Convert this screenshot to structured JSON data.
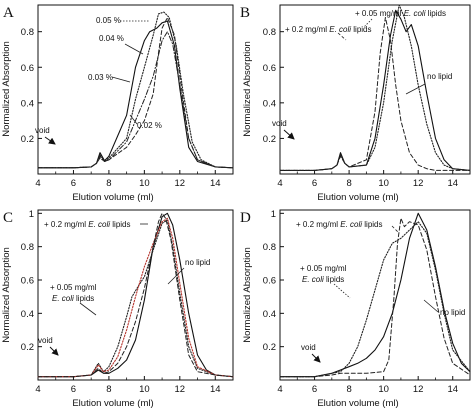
{
  "figure": {
    "colors": {
      "solid": "#111111",
      "dotted": "#222222",
      "dashed": "#222222",
      "red": "#b5352e",
      "grey": "#777777"
    }
  },
  "chart_data": [
    {
      "type": "line",
      "panel": "A",
      "xlabel": "Elution volume (ml)",
      "ylabel": "Normalized Absorption",
      "xlim": [
        4,
        15
      ],
      "ylim": [
        0,
        0.95
      ],
      "xticks": [
        4,
        6,
        8,
        10,
        12,
        14
      ],
      "yticks": [
        0.2,
        0.4,
        0.6,
        0.8
      ],
      "series": [
        {
          "style": "solid",
          "x": [
            4,
            6,
            7,
            7.3,
            7.5,
            7.75,
            8,
            9,
            9.5,
            10,
            10.3,
            10.7,
            11,
            11.3,
            11.7,
            12,
            12.5,
            13,
            14,
            15
          ],
          "y": [
            0.035,
            0.035,
            0.04,
            0.06,
            0.12,
            0.075,
            0.1,
            0.33,
            0.6,
            0.75,
            0.8,
            0.82,
            0.85,
            0.86,
            0.72,
            0.48,
            0.15,
            0.07,
            0.04,
            0.035
          ]
        },
        {
          "style": "dotted",
          "x": [
            4,
            6,
            7,
            7.3,
            7.5,
            7.75,
            8,
            9,
            9.5,
            10,
            10.5,
            10.8,
            11.1,
            11.4,
            11.8,
            12.2,
            12.7,
            13.2,
            14,
            15
          ],
          "y": [
            0.035,
            0.035,
            0.04,
            0.06,
            0.11,
            0.07,
            0.09,
            0.2,
            0.42,
            0.6,
            0.78,
            0.9,
            0.91,
            0.88,
            0.72,
            0.45,
            0.18,
            0.08,
            0.04,
            0.035
          ]
        },
        {
          "style": "dashed",
          "x": [
            4,
            6,
            7,
            7.3,
            7.5,
            7.75,
            8,
            9,
            9.5,
            10,
            10.5,
            10.8,
            11,
            11.3,
            11.7,
            12,
            12.5,
            13,
            14,
            15
          ],
          "y": [
            0.035,
            0.035,
            0.04,
            0.06,
            0.1,
            0.07,
            0.08,
            0.15,
            0.22,
            0.3,
            0.45,
            0.68,
            0.82,
            0.88,
            0.78,
            0.55,
            0.2,
            0.08,
            0.04,
            0.035
          ]
        },
        {
          "style": "dashdot",
          "x": [
            4,
            6,
            7,
            7.3,
            7.5,
            7.75,
            8,
            9,
            9.5,
            10,
            10.5,
            11,
            11.3,
            11.6,
            12,
            12.5,
            13,
            14,
            15
          ],
          "y": [
            0.035,
            0.035,
            0.04,
            0.06,
            0.09,
            0.07,
            0.08,
            0.18,
            0.3,
            0.42,
            0.55,
            0.75,
            0.8,
            0.73,
            0.5,
            0.2,
            0.08,
            0.04,
            0.035
          ]
        }
      ],
      "annotations": [
        {
          "text": "0.05 %",
          "style": "normal"
        },
        {
          "text": "0.04 %",
          "style": "normal"
        },
        {
          "text": "0.03 %",
          "style": "normal"
        },
        {
          "text": "0.02 %",
          "style": "normal"
        },
        {
          "text": "void",
          "style": "normal"
        }
      ]
    },
    {
      "type": "line",
      "panel": "B",
      "xlabel": "Elution volume (ml)",
      "ylabel": "Normalized Absorption",
      "xlim": [
        4,
        15
      ],
      "ylim": [
        0,
        0.95
      ],
      "xticks": [
        4,
        6,
        8,
        10,
        12,
        14
      ],
      "yticks": [
        0.2,
        0.4,
        0.6,
        0.8
      ],
      "series": [
        {
          "style": "solid",
          "x": [
            4,
            6,
            7,
            7.3,
            7.5,
            7.75,
            8,
            9,
            9.5,
            10,
            10.4,
            10.7,
            11,
            11.3,
            11.6,
            12,
            12.5,
            13,
            13.5,
            14,
            15
          ],
          "y": [
            0.02,
            0.02,
            0.03,
            0.05,
            0.12,
            0.06,
            0.04,
            0.05,
            0.2,
            0.5,
            0.78,
            0.92,
            0.87,
            0.8,
            0.84,
            0.72,
            0.45,
            0.2,
            0.08,
            0.03,
            0.02
          ]
        },
        {
          "style": "dotted",
          "x": [
            4,
            6,
            7,
            7.3,
            7.5,
            7.75,
            8,
            9,
            9.5,
            10,
            10.5,
            10.9,
            11.2,
            11.6,
            12,
            12.5,
            13,
            13.5,
            14,
            15
          ],
          "y": [
            0.02,
            0.02,
            0.03,
            0.05,
            0.11,
            0.06,
            0.04,
            0.05,
            0.15,
            0.4,
            0.75,
            0.95,
            0.88,
            0.72,
            0.5,
            0.28,
            0.12,
            0.05,
            0.03,
            0.02
          ]
        },
        {
          "style": "dashed",
          "x": [
            4,
            6,
            7,
            7.3,
            7.5,
            7.75,
            8,
            9,
            9.5,
            9.8,
            10.1,
            10.4,
            10.7,
            11,
            11.5,
            12,
            12.5,
            13,
            14,
            15
          ],
          "y": [
            0.02,
            0.02,
            0.03,
            0.05,
            0.1,
            0.06,
            0.04,
            0.08,
            0.35,
            0.68,
            0.88,
            0.75,
            0.5,
            0.3,
            0.12,
            0.05,
            0.03,
            0.02,
            0.02,
            0.02
          ]
        }
      ],
      "annotations": [
        {
          "text": "+ 0.05 mg/ml ",
          "italic": "E. coli",
          "text_after": " lipids"
        },
        {
          "text": "+ 0.2 mg/ml ",
          "italic": "E. coli",
          "text_after": " lipids"
        },
        {
          "text": "no lipid"
        },
        {
          "text": "void"
        }
      ]
    },
    {
      "type": "line",
      "panel": "C",
      "xlabel": "Elution volume (ml)",
      "ylabel": "Normalized Absorption",
      "xlim": [
        4,
        15
      ],
      "ylim": [
        0,
        1.02
      ],
      "xticks": [
        4,
        6,
        8,
        10,
        12,
        14
      ],
      "yticks": [
        0.2,
        0.4,
        0.6,
        0.8,
        1
      ],
      "series": [
        {
          "style": "solid",
          "x": [
            4,
            6,
            7,
            7.4,
            7.7,
            8,
            8.5,
            9,
            9.5,
            10,
            10.5,
            11,
            11.3,
            11.6,
            12,
            12.5,
            13,
            13.5,
            14,
            15
          ],
          "y": [
            0.02,
            0.02,
            0.03,
            0.06,
            0.04,
            0.04,
            0.07,
            0.12,
            0.24,
            0.48,
            0.8,
            0.98,
            1.0,
            0.93,
            0.72,
            0.4,
            0.15,
            0.06,
            0.03,
            0.02
          ]
        },
        {
          "style": "dotted",
          "x": [
            4,
            6,
            7,
            7.4,
            7.7,
            8,
            8.5,
            9,
            9.3,
            9.7,
            10,
            10.5,
            11,
            11.3,
            11.6,
            12,
            12.5,
            13,
            14,
            15
          ],
          "y": [
            0.02,
            0.02,
            0.03,
            0.1,
            0.05,
            0.08,
            0.2,
            0.38,
            0.5,
            0.57,
            0.62,
            0.78,
            0.94,
            0.96,
            0.8,
            0.52,
            0.2,
            0.07,
            0.03,
            0.02
          ]
        },
        {
          "style": "red",
          "x": [
            4,
            6,
            7,
            7.4,
            7.7,
            8,
            8.5,
            9,
            9.5,
            10,
            10.5,
            11,
            11.3,
            11.6,
            12,
            12.5,
            13,
            14,
            15
          ],
          "y": [
            0.02,
            0.02,
            0.03,
            0.09,
            0.05,
            0.06,
            0.14,
            0.3,
            0.5,
            0.68,
            0.82,
            0.95,
            0.97,
            0.85,
            0.58,
            0.25,
            0.08,
            0.03,
            0.02
          ]
        },
        {
          "style": "dashed",
          "x": [
            4,
            6,
            7,
            7.4,
            7.7,
            8,
            8.5,
            9,
            9.5,
            10,
            10.5,
            10.8,
            11,
            11.2,
            11.5,
            12,
            12.5,
            13,
            14,
            15
          ],
          "y": [
            0.02,
            0.02,
            0.03,
            0.07,
            0.04,
            0.05,
            0.1,
            0.2,
            0.35,
            0.55,
            0.8,
            0.95,
            1.0,
            0.97,
            0.84,
            0.48,
            0.15,
            0.05,
            0.03,
            0.02
          ]
        }
      ],
      "annotations": [
        {
          "text": "+ 0.2 mg/ml ",
          "italic": "E. coli",
          "text_after": " lipids"
        },
        {
          "text": "+ 0.05 mg/ml"
        },
        {
          "text": "lipids",
          "italic": "E. coli"
        },
        {
          "text": "no lipid"
        },
        {
          "text": "void"
        }
      ]
    },
    {
      "type": "line",
      "panel": "D",
      "xlabel": "Elution volume (ml)",
      "ylabel": "Normalized Absorption",
      "xlim": [
        4,
        15
      ],
      "ylim": [
        0,
        1.02
      ],
      "xticks": [
        4,
        6,
        8,
        10,
        12,
        14
      ],
      "yticks": [
        0.2,
        0.4,
        0.6,
        0.8,
        1
      ],
      "series": [
        {
          "style": "solid",
          "x": [
            4,
            6,
            7,
            7.5,
            8,
            8.5,
            9,
            9.5,
            10,
            10.5,
            11,
            11.5,
            12,
            12.5,
            13,
            13.5,
            14,
            14.5,
            15
          ],
          "y": [
            0.02,
            0.02,
            0.04,
            0.06,
            0.08,
            0.1,
            0.13,
            0.18,
            0.26,
            0.4,
            0.6,
            0.85,
            1.0,
            0.9,
            0.68,
            0.42,
            0.22,
            0.1,
            0.05
          ]
        },
        {
          "style": "dotted",
          "x": [
            4,
            6,
            7,
            7.5,
            8,
            8.5,
            9,
            9.5,
            10,
            10.5,
            11,
            11.5,
            12,
            12.5,
            13,
            13.5,
            14,
            15
          ],
          "y": [
            0.02,
            0.02,
            0.04,
            0.05,
            0.1,
            0.2,
            0.36,
            0.54,
            0.72,
            0.82,
            0.85,
            0.9,
            0.95,
            0.88,
            0.66,
            0.4,
            0.18,
            0.05
          ]
        },
        {
          "style": "dashed",
          "x": [
            4,
            6,
            7,
            7.5,
            8,
            9,
            10,
            10.3,
            10.6,
            10.8,
            11,
            11.2,
            11.5,
            12,
            12.5,
            13,
            13.5,
            14,
            15
          ],
          "y": [
            0.02,
            0.02,
            0.03,
            0.04,
            0.04,
            0.04,
            0.05,
            0.12,
            0.5,
            0.82,
            0.97,
            0.92,
            0.95,
            0.93,
            0.78,
            0.5,
            0.25,
            0.1,
            0.03
          ]
        }
      ],
      "annotations": [
        {
          "text": "+ 0.2 mg/ml ",
          "italic": "E. coli",
          "text_after": " lipids"
        },
        {
          "text": "+ 0.05 mg/ml"
        },
        {
          "text": "lipids",
          "italic": "E. coli"
        },
        {
          "text": "no lipid"
        },
        {
          "text": "void"
        }
      ]
    }
  ]
}
